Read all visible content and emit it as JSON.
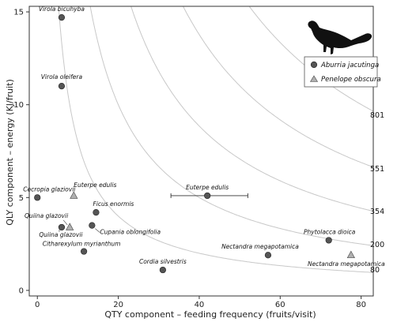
{
  "chart_data": {
    "type": "scatter",
    "xlabel": "QTY component – feeding frequency (fruits/visit)",
    "ylabel": "QLY component – energy (KJ/fruit)",
    "xlim": [
      -2,
      83
    ],
    "ylim": [
      -0.3,
      15.3
    ],
    "xticks": [
      0,
      20,
      40,
      60,
      80
    ],
    "yticks": [
      0,
      5,
      10,
      15
    ],
    "grid": false,
    "legend": {
      "placement": "top-right",
      "entries": [
        {
          "name": "Aburria jacutinga",
          "marker": "circle"
        },
        {
          "name": "Penelope obscura",
          "marker": "triangle"
        }
      ]
    },
    "isoclines": [
      {
        "label": "80",
        "value": 80
      },
      {
        "label": "200",
        "value": 200
      },
      {
        "label": "354",
        "value": 354
      },
      {
        "label": "551",
        "value": 551
      },
      {
        "label": "801",
        "value": 801
      }
    ],
    "series": [
      {
        "name": "Aburria jacutinga",
        "marker": "circle",
        "color": "#555555",
        "points": [
          {
            "label": "Virola bicuhyba",
            "x": 6,
            "y": 14.7
          },
          {
            "label": "Virola oleifera",
            "x": 6,
            "y": 11.0
          },
          {
            "label": "Cecropia glaziovii",
            "x": 0,
            "y": 5.0
          },
          {
            "label": "Euterpe edulis",
            "x": 42,
            "y": 5.1,
            "xerr": [
              33,
              52
            ]
          },
          {
            "label": "Ficus enormis",
            "x": 14.5,
            "y": 4.2
          },
          {
            "label": "Quiina glazovii",
            "x": 6,
            "y": 3.4
          },
          {
            "label": "Cupania oblongifolia",
            "x": 13.5,
            "y": 3.5
          },
          {
            "label": "Citharexylum myrianthum",
            "x": 11.5,
            "y": 2.1
          },
          {
            "label": "Cordia silvestris",
            "x": 31,
            "y": 1.1
          },
          {
            "label": "Phytolacca dioica",
            "x": 72,
            "y": 2.7
          },
          {
            "label": "Nectandra megapotamica",
            "x": 57,
            "y": 1.9
          }
        ]
      },
      {
        "name": "Penelope obscura",
        "marker": "triangle",
        "color": "#aaaaaa",
        "points": [
          {
            "label": "Euterpe edulis",
            "x": 9,
            "y": 5.1
          },
          {
            "label": "Quiina glazovii",
            "x": 8,
            "y": 3.4
          },
          {
            "label": "Nectandra megapotamica",
            "x": 77.5,
            "y": 1.9
          }
        ]
      }
    ]
  }
}
